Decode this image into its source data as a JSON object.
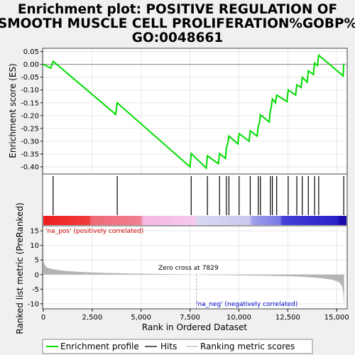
{
  "title": {
    "line1": "Enrichment plot: POSITIVE REGULATION OF",
    "line2": "SMOOTH MUSCLE CELL PROLIFERATION%GOBP%",
    "line3": "GO:0048661"
  },
  "chart_data": {
    "type": "line",
    "es_panel": {
      "ylabel": "Enrichment score (ES)",
      "ylim": [
        -0.425,
        0.06
      ],
      "yticks": [
        0.05,
        0.0,
        -0.05,
        -0.1,
        -0.15,
        -0.2,
        -0.25,
        -0.3,
        -0.35,
        -0.4
      ],
      "ytick_labels": [
        "0.05",
        "0.00",
        "-0.05",
        "-0.10",
        "-0.15",
        "-0.20",
        "-0.25",
        "-0.30",
        "-0.35",
        "-0.40"
      ],
      "series_color": "#00dd00",
      "x": [
        0,
        380,
        500,
        3700,
        3780,
        7500,
        7560,
        8330,
        8390,
        8950,
        9010,
        9310,
        9360,
        9430,
        9490,
        9950,
        10010,
        10520,
        10580,
        10930,
        10990,
        11040,
        11100,
        11550,
        11610,
        11650,
        11710,
        11870,
        11930,
        12460,
        12520,
        12900,
        12960,
        13180,
        13240,
        13490,
        13550,
        13810,
        13870,
        14020,
        14080,
        15330,
        15360
      ],
      "y": [
        0.0,
        -0.015,
        0.012,
        -0.195,
        -0.15,
        -0.4,
        -0.348,
        -0.405,
        -0.357,
        -0.388,
        -0.348,
        -0.367,
        -0.325,
        -0.31,
        -0.28,
        -0.31,
        -0.27,
        -0.3,
        -0.26,
        -0.28,
        -0.24,
        -0.235,
        -0.197,
        -0.225,
        -0.18,
        -0.17,
        -0.135,
        -0.15,
        -0.12,
        -0.145,
        -0.1,
        -0.12,
        -0.08,
        -0.09,
        -0.05,
        -0.07,
        -0.025,
        -0.04,
        0.005,
        -0.005,
        0.036,
        -0.045,
        0.003
      ]
    },
    "hits": [
      500,
      3780,
      7560,
      8390,
      9010,
      9360,
      9490,
      10010,
      10580,
      10990,
      11100,
      11610,
      11710,
      11930,
      12520,
      12960,
      13240,
      13550,
      13870,
      14080,
      15360
    ],
    "gradient_stops": [
      {
        "pos": 0.0,
        "color": "#f01e1e"
      },
      {
        "pos": 0.15,
        "color": "#f03c3c"
      },
      {
        "pos": 0.16,
        "color": "#f06a78"
      },
      {
        "pos": 0.32,
        "color": "#f08090"
      },
      {
        "pos": 0.33,
        "color": "#f5b8e2"
      },
      {
        "pos": 0.5,
        "color": "#f5c8ec"
      },
      {
        "pos": 0.51,
        "color": "#d8d8f2"
      },
      {
        "pos": 0.68,
        "color": "#c8c8f0"
      },
      {
        "pos": 0.69,
        "color": "#a0a0ec"
      },
      {
        "pos": 0.78,
        "color": "#7a78e6"
      },
      {
        "pos": 0.79,
        "color": "#4440d8"
      },
      {
        "pos": 0.97,
        "color": "#2a20c8"
      },
      {
        "pos": 0.98,
        "color": "#1a0aa8"
      },
      {
        "pos": 1.0,
        "color": "#1a0aa8"
      }
    ],
    "metric_panel": {
      "ylabel": "Ranked list metric (PreRanked)",
      "ylim": [
        -11.5,
        16.5
      ],
      "yticks": [
        15,
        10,
        5,
        0,
        -5,
        -10
      ],
      "ytick_labels": [
        "15",
        "10",
        "5",
        "0",
        "-5",
        "-10"
      ],
      "profile_x": [
        0,
        10,
        40,
        100,
        200,
        400,
        700,
        1200,
        2000,
        3000,
        4500,
        6000,
        7000,
        7829,
        8500,
        9500,
        10500,
        11500,
        12500,
        13200,
        13800,
        14300,
        14700,
        15000,
        15150,
        15250,
        15300,
        15340,
        15380
      ],
      "profile_y": [
        15.5,
        5.0,
        4.0,
        3.0,
        2.4,
        2.0,
        1.6,
        1.2,
        0.9,
        0.6,
        0.35,
        0.2,
        0.1,
        0.0,
        -0.1,
        -0.2,
        -0.3,
        -0.4,
        -0.55,
        -0.75,
        -1.0,
        -1.3,
        -1.7,
        -2.2,
        -2.8,
        -3.6,
        -4.6,
        -6.5,
        -11.0
      ],
      "pos_label": "'na_pos' (positively correlated)",
      "neg_label": "'na_neg' (negatively correlated)",
      "zero_cross_label": "Zero cross at 7829",
      "zero_cross": 7829
    },
    "x_axis": {
      "xlabel": "Rank in Ordered Dataset",
      "xlim": [
        0,
        15500
      ],
      "xticks": [
        0,
        2500,
        5000,
        7500,
        10000,
        12500,
        15000
      ],
      "xtick_labels": [
        "0",
        "2,500",
        "5,000",
        "7,500",
        "10,000",
        "12,500",
        "15,000"
      ]
    },
    "legend": {
      "placement": "bottom",
      "entries": [
        "Enrichment profile",
        "Hits",
        "Ranking metric scores"
      ],
      "colors": [
        "#00dd00",
        "#000000",
        "#bbbbbb"
      ]
    }
  }
}
